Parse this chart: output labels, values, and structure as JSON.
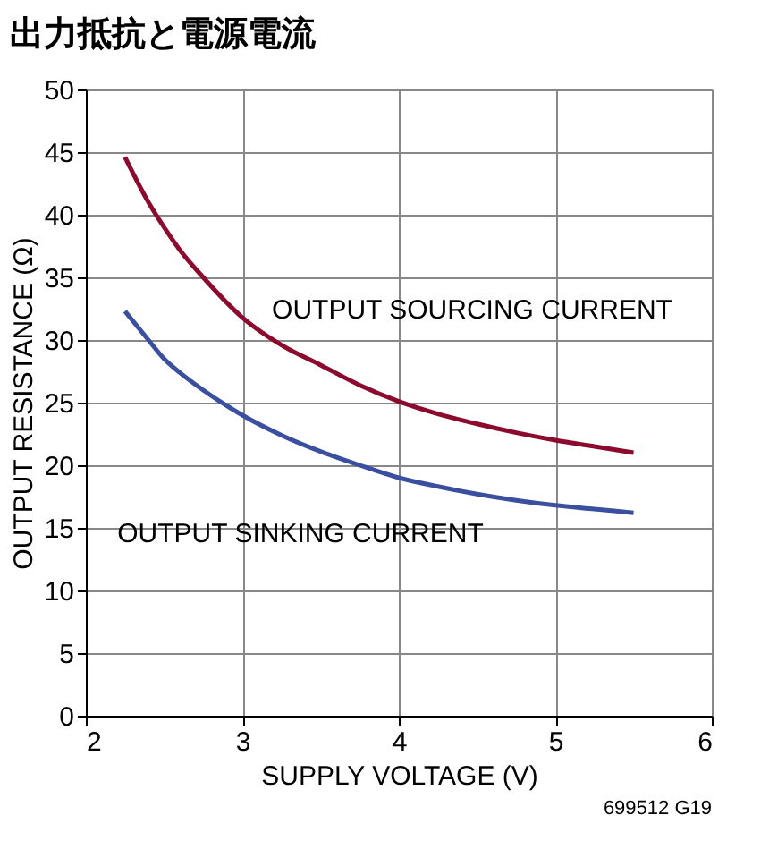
{
  "chart_data": {
    "type": "line",
    "title": "出力抵抗と電源電流",
    "xlabel": "SUPPLY VOLTAGE (V)",
    "ylabel": "OUTPUT RESISTANCE (Ω)",
    "xlim": [
      2,
      6
    ],
    "xticks": [
      2,
      3,
      4,
      5,
      6
    ],
    "ylim": [
      0,
      50
    ],
    "yticks": [
      0,
      5,
      10,
      15,
      20,
      25,
      30,
      35,
      40,
      45,
      50
    ],
    "grid": true,
    "line_style": "solid",
    "marker": "none",
    "series": [
      {
        "name": "OUTPUT SOURCING CURRENT",
        "color": "#8b0a2e",
        "x": [
          2.25,
          2.4,
          2.5,
          2.6,
          2.75,
          3,
          3.25,
          3.5,
          3.75,
          4,
          4.25,
          4.5,
          4.75,
          5,
          5.25,
          5.5
        ],
        "values": [
          44.6,
          41,
          39,
          37.2,
          35,
          31.8,
          29.6,
          28,
          26.4,
          25.1,
          24.1,
          23.3,
          22.6,
          22,
          21.5,
          21
        ]
      },
      {
        "name": "OUTPUT SINKING CURRENT",
        "color": "#3a4fa0",
        "x": [
          2.25,
          2.4,
          2.5,
          2.6,
          2.75,
          3,
          3.25,
          3.5,
          3.75,
          4,
          4.25,
          4.5,
          4.75,
          5,
          5.25,
          5.5
        ],
        "values": [
          32.3,
          30,
          28.5,
          27.4,
          26,
          24,
          22.4,
          21.1,
          20,
          19,
          18.3,
          17.7,
          17.2,
          16.8,
          16.5,
          16.2
        ]
      }
    ],
    "annotations": [
      "699512 G19"
    ]
  }
}
